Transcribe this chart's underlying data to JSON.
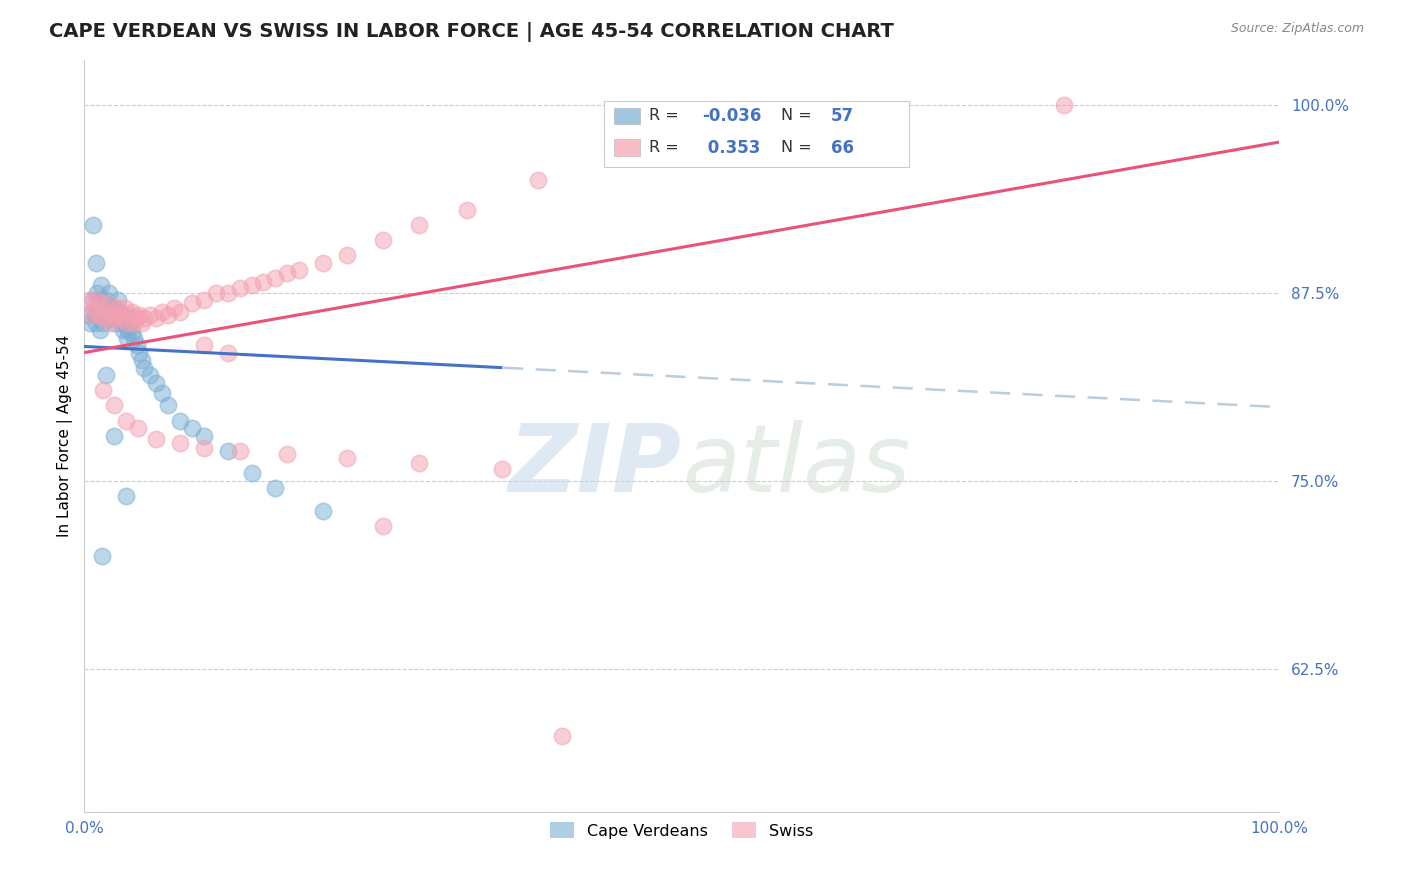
{
  "title": "CAPE VERDEAN VS SWISS IN LABOR FORCE | AGE 45-54 CORRELATION CHART",
  "source_text": "Source: ZipAtlas.com",
  "ylabel": "In Labor Force | Age 45-54",
  "xlim": [
    0.0,
    1.0
  ],
  "ylim": [
    0.53,
    1.03
  ],
  "yticks": [
    0.625,
    0.75,
    0.875,
    1.0
  ],
  "ytick_labels": [
    "62.5%",
    "75.0%",
    "87.5%",
    "100.0%"
  ],
  "xtick_labels": [
    "0.0%",
    "100.0%"
  ],
  "blue_R": -0.036,
  "blue_N": 57,
  "pink_R": 0.353,
  "pink_N": 66,
  "blue_color": "#7BAFD4",
  "pink_color": "#F4A0B0",
  "blue_line_color": "#4472C4",
  "pink_line_color": "#E8537A",
  "dash_color": "#BBCCDD",
  "legend_labels": [
    "Cape Verdeans",
    "Swiss"
  ],
  "watermark_zip": "ZIP",
  "watermark_atlas": "atlas",
  "title_fontsize": 14,
  "axis_fontsize": 11,
  "tick_fontsize": 11,
  "blue_scatter_x": [
    0.003,
    0.005,
    0.007,
    0.009,
    0.01,
    0.011,
    0.012,
    0.013,
    0.014,
    0.015,
    0.016,
    0.017,
    0.018,
    0.019,
    0.02,
    0.021,
    0.022,
    0.023,
    0.024,
    0.025,
    0.026,
    0.027,
    0.028,
    0.029,
    0.03,
    0.031,
    0.032,
    0.033,
    0.034,
    0.035,
    0.036,
    0.037,
    0.038,
    0.04,
    0.042,
    0.044,
    0.046,
    0.048,
    0.05,
    0.055,
    0.06,
    0.065,
    0.07,
    0.08,
    0.09,
    0.1,
    0.12,
    0.14,
    0.16,
    0.2,
    0.007,
    0.01,
    0.013,
    0.018,
    0.025,
    0.035,
    0.015
  ],
  "blue_scatter_y": [
    0.86,
    0.855,
    0.87,
    0.86,
    0.855,
    0.875,
    0.865,
    0.87,
    0.88,
    0.87,
    0.855,
    0.862,
    0.87,
    0.86,
    0.858,
    0.875,
    0.865,
    0.86,
    0.858,
    0.865,
    0.855,
    0.86,
    0.87,
    0.862,
    0.858,
    0.855,
    0.85,
    0.86,
    0.855,
    0.858,
    0.845,
    0.85,
    0.855,
    0.848,
    0.845,
    0.84,
    0.835,
    0.83,
    0.825,
    0.82,
    0.815,
    0.808,
    0.8,
    0.79,
    0.785,
    0.78,
    0.77,
    0.755,
    0.745,
    0.73,
    0.92,
    0.895,
    0.85,
    0.82,
    0.78,
    0.74,
    0.7
  ],
  "pink_scatter_x": [
    0.004,
    0.006,
    0.008,
    0.01,
    0.012,
    0.014,
    0.016,
    0.018,
    0.02,
    0.022,
    0.024,
    0.026,
    0.028,
    0.03,
    0.032,
    0.034,
    0.036,
    0.038,
    0.04,
    0.042,
    0.044,
    0.046,
    0.048,
    0.05,
    0.055,
    0.06,
    0.065,
    0.07,
    0.075,
    0.08,
    0.09,
    0.1,
    0.11,
    0.12,
    0.13,
    0.14,
    0.15,
    0.16,
    0.17,
    0.18,
    0.2,
    0.22,
    0.25,
    0.28,
    0.32,
    0.38,
    0.45,
    0.55,
    0.68,
    0.82,
    0.016,
    0.025,
    0.035,
    0.045,
    0.06,
    0.08,
    0.1,
    0.13,
    0.17,
    0.22,
    0.28,
    0.35,
    0.1,
    0.12,
    0.25,
    0.4
  ],
  "pink_scatter_y": [
    0.87,
    0.86,
    0.865,
    0.87,
    0.86,
    0.868,
    0.858,
    0.862,
    0.868,
    0.855,
    0.86,
    0.858,
    0.865,
    0.862,
    0.858,
    0.865,
    0.855,
    0.86,
    0.862,
    0.855,
    0.858,
    0.86,
    0.855,
    0.858,
    0.86,
    0.858,
    0.862,
    0.86,
    0.865,
    0.862,
    0.868,
    0.87,
    0.875,
    0.875,
    0.878,
    0.88,
    0.882,
    0.885,
    0.888,
    0.89,
    0.895,
    0.9,
    0.91,
    0.92,
    0.93,
    0.95,
    0.965,
    0.98,
    0.99,
    1.0,
    0.81,
    0.8,
    0.79,
    0.785,
    0.778,
    0.775,
    0.772,
    0.77,
    0.768,
    0.765,
    0.762,
    0.758,
    0.84,
    0.835,
    0.72,
    0.58
  ]
}
